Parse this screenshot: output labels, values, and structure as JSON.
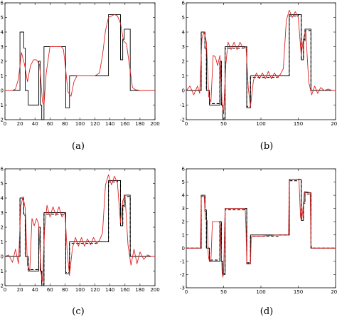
{
  "chart_data": [
    {
      "type": "line",
      "caption": "(a)",
      "xlim": [
        0,
        200
      ],
      "ylim": [
        -2,
        6
      ],
      "xticks": [
        0,
        20,
        40,
        60,
        80,
        100,
        120,
        140,
        160,
        180,
        200
      ],
      "yticks": [
        -2,
        -1,
        0,
        1,
        2,
        3,
        4,
        5,
        6
      ],
      "series": [
        {
          "color": "#000000",
          "style": "solid",
          "x": [
            0,
            20,
            20,
            25,
            25,
            27,
            27,
            31,
            31,
            45,
            45,
            47,
            47,
            49,
            49,
            52,
            52,
            78,
            78,
            81,
            81,
            86,
            86,
            123,
            123,
            138,
            138,
            150,
            150,
            154,
            154,
            157,
            157,
            159,
            159,
            167,
            167,
            175,
            175,
            188,
            188,
            200
          ],
          "y": [
            0,
            0,
            4,
            4,
            2.9,
            2.9,
            0,
            0,
            -1,
            -1,
            2,
            2,
            -1,
            -1,
            -2,
            -2,
            3,
            3,
            3,
            3,
            -1.2,
            -1.2,
            1,
            1,
            1,
            1,
            5.2,
            5.2,
            5.2,
            5.2,
            2.1,
            2.1,
            3.5,
            3.5,
            4.2,
            4.2,
            0,
            0,
            0,
            0,
            0,
            0
          ]
        },
        {
          "color": "#e02020",
          "style": "solid",
          "x": [
            0,
            10,
            14,
            18,
            22,
            26,
            30,
            34,
            38,
            42,
            46,
            48,
            50,
            52,
            55,
            60,
            65,
            70,
            75,
            78,
            81,
            84,
            88,
            92,
            96,
            100,
            110,
            120,
            126,
            130,
            134,
            138,
            142,
            146,
            150,
            154,
            158,
            162,
            166,
            170,
            174,
            180,
            190,
            200
          ],
          "y": [
            0,
            0,
            0.1,
            0.8,
            2.6,
            1.8,
            0.6,
            1.7,
            2.1,
            2.1,
            1.8,
            0.6,
            -0.8,
            -1.0,
            1.2,
            3.0,
            3.0,
            3.0,
            3.0,
            2.8,
            1.4,
            -0.1,
            -0.4,
            0.6,
            1.0,
            1.0,
            1.0,
            1.0,
            1.2,
            2.4,
            4.1,
            5.0,
            5.1,
            5.2,
            5.1,
            4.6,
            3.4,
            3.2,
            1.7,
            0.2,
            0.05,
            0,
            0,
            0
          ]
        }
      ]
    },
    {
      "type": "line",
      "caption": "(b)",
      "xlim": [
        0,
        200
      ],
      "ylim": [
        -2,
        6
      ],
      "xticks": [
        0,
        50,
        100,
        150,
        200
      ],
      "yticks": [
        -2,
        -1,
        0,
        1,
        2,
        3,
        4,
        5,
        6
      ],
      "series": [
        {
          "color": "#000000",
          "style": "solid",
          "x": [
            0,
            20,
            20,
            25,
            25,
            27,
            27,
            31,
            31,
            45,
            45,
            47,
            47,
            49,
            49,
            52,
            52,
            78,
            78,
            81,
            81,
            86,
            86,
            123,
            123,
            138,
            138,
            150,
            150,
            154,
            154,
            157,
            157,
            159,
            159,
            167,
            167,
            175,
            175,
            188,
            188,
            200
          ],
          "y": [
            0,
            0,
            4,
            4,
            2.9,
            2.9,
            0,
            0,
            -1,
            -1,
            2,
            2,
            -1,
            -1,
            -2,
            -2,
            3,
            3,
            3,
            3,
            -1.2,
            -1.2,
            1,
            1,
            1,
            1,
            5.2,
            5.2,
            5.2,
            5.2,
            2.1,
            2.1,
            3.5,
            3.5,
            4.2,
            4.2,
            0,
            0,
            0,
            0,
            0,
            0
          ]
        },
        {
          "color": "#000000",
          "style": "dashed",
          "x": [
            0,
            20,
            20,
            25,
            25,
            27,
            27,
            31,
            31,
            45,
            45,
            47,
            47,
            49,
            49,
            52,
            52,
            78,
            78,
            81,
            81,
            86,
            86,
            123,
            123,
            138,
            138,
            150,
            150,
            154,
            154,
            157,
            157,
            159,
            159,
            167,
            167,
            175,
            175,
            188,
            188,
            200
          ],
          "y": [
            0,
            0,
            3.9,
            3.9,
            2.8,
            2.8,
            0,
            0,
            -0.9,
            -0.9,
            2,
            2,
            -1,
            -1,
            -1.9,
            -1.9,
            2.9,
            2.9,
            3,
            3,
            -1.1,
            -1.1,
            0.9,
            0.9,
            1,
            1,
            5.1,
            5.1,
            5.2,
            5.2,
            2.2,
            2.2,
            3.4,
            3.4,
            4.1,
            4.1,
            0,
            0,
            0,
            0,
            0,
            0
          ]
        },
        {
          "color": "#e02020",
          "style": "solid",
          "x": [
            0,
            5,
            10,
            15,
            18,
            21,
            24,
            27,
            30,
            33,
            36,
            39,
            42,
            45,
            48,
            50,
            53,
            56,
            60,
            64,
            68,
            72,
            76,
            80,
            83,
            86,
            90,
            94,
            98,
            102,
            106,
            110,
            114,
            118,
            122,
            126,
            130,
            134,
            138,
            142,
            146,
            150,
            154,
            157,
            160,
            164,
            168,
            172,
            176,
            180,
            185,
            190,
            195,
            200
          ],
          "y": [
            0,
            0.3,
            -0.3,
            0.3,
            -0.2,
            3.6,
            4.0,
            3.3,
            -0.4,
            -0.8,
            2.4,
            2.3,
            1.7,
            2.4,
            -0.9,
            -1.6,
            1.8,
            3.3,
            2.8,
            3.3,
            2.8,
            3.3,
            2.9,
            3.0,
            0.2,
            -1.1,
            0.7,
            1.2,
            0.8,
            1.2,
            0.8,
            1.3,
            0.8,
            1.2,
            0.9,
            1.1,
            1.5,
            4.8,
            5.5,
            5.0,
            5.4,
            5.0,
            2.4,
            3.6,
            4.1,
            0.6,
            -0.3,
            0.3,
            -0.2,
            0.2,
            0,
            0.1,
            0,
            0
          ]
        }
      ]
    },
    {
      "type": "line",
      "caption": "(c)",
      "xlim": [
        0,
        200
      ],
      "ylim": [
        -2,
        6
      ],
      "xticks": [
        0,
        20,
        40,
        60,
        80,
        100,
        120,
        140,
        160,
        180,
        200
      ],
      "yticks": [
        -2,
        -1,
        0,
        1,
        2,
        3,
        4,
        5,
        6
      ],
      "series": [
        {
          "color": "#000000",
          "style": "solid",
          "x": [
            0,
            20,
            20,
            25,
            25,
            27,
            27,
            31,
            31,
            45,
            45,
            47,
            47,
            49,
            49,
            52,
            52,
            78,
            78,
            81,
            81,
            86,
            86,
            123,
            123,
            138,
            138,
            150,
            150,
            154,
            154,
            157,
            157,
            159,
            159,
            167,
            167,
            175,
            175,
            188,
            188,
            200
          ],
          "y": [
            0,
            0,
            4,
            4,
            2.9,
            2.9,
            0,
            0,
            -1,
            -1,
            2,
            2,
            -1,
            -1,
            -2,
            -2,
            3,
            3,
            3,
            3,
            -1.2,
            -1.2,
            1,
            1,
            1,
            1,
            5.2,
            5.2,
            5.2,
            5.2,
            2.1,
            2.1,
            3.5,
            3.5,
            4.2,
            4.2,
            0,
            0,
            0,
            0,
            0,
            0
          ]
        },
        {
          "color": "#000000",
          "style": "dashed",
          "x": [
            0,
            20,
            20,
            25,
            25,
            27,
            27,
            31,
            31,
            45,
            45,
            47,
            47,
            49,
            49,
            52,
            52,
            78,
            78,
            81,
            81,
            86,
            86,
            123,
            123,
            138,
            138,
            150,
            150,
            154,
            154,
            157,
            157,
            159,
            159,
            167,
            167,
            175,
            175,
            188,
            188,
            200
          ],
          "y": [
            0,
            0,
            3.9,
            3.9,
            2.8,
            2.8,
            0,
            0,
            -0.9,
            -0.9,
            2,
            2,
            -1,
            -1,
            -1.9,
            -1.9,
            2.9,
            2.9,
            3,
            3,
            -1.1,
            -1.1,
            0.9,
            0.9,
            1,
            1,
            5.1,
            5.1,
            5.2,
            5.2,
            2.2,
            2.2,
            3.4,
            3.4,
            4.1,
            4.1,
            0,
            0,
            0,
            0,
            0,
            0
          ]
        },
        {
          "color": "#e02020",
          "style": "solid",
          "x": [
            0,
            5,
            10,
            14,
            18,
            21,
            24,
            27,
            30,
            33,
            36,
            39,
            42,
            45,
            48,
            50,
            53,
            56,
            60,
            64,
            68,
            72,
            76,
            80,
            83,
            86,
            90,
            94,
            98,
            102,
            106,
            110,
            114,
            118,
            122,
            126,
            130,
            134,
            138,
            142,
            146,
            150,
            154,
            157,
            160,
            164,
            168,
            172,
            176,
            180,
            185,
            190,
            195,
            200
          ],
          "y": [
            0,
            0.1,
            -0.4,
            0.5,
            -0.5,
            3.4,
            4.1,
            3.3,
            -0.6,
            -1.0,
            2.6,
            2.1,
            2.6,
            2.2,
            -1.1,
            -1.7,
            2.0,
            3.5,
            2.7,
            3.4,
            2.8,
            3.4,
            2.7,
            3.0,
            0.3,
            -1.3,
            0.6,
            1.3,
            0.7,
            1.3,
            0.7,
            1.2,
            0.8,
            1.3,
            0.9,
            1.1,
            1.6,
            4.9,
            5.6,
            4.9,
            5.5,
            5.0,
            2.3,
            3.8,
            4.2,
            0.8,
            -0.6,
            0.5,
            -0.5,
            0.3,
            -0.2,
            0.1,
            0,
            0
          ]
        }
      ]
    },
    {
      "type": "line",
      "caption": "(d)",
      "xlim": [
        0,
        200
      ],
      "ylim": [
        -3,
        6
      ],
      "xticks": [
        0,
        50,
        100,
        150,
        200
      ],
      "yticks": [
        -3,
        -2,
        -1,
        0,
        1,
        2,
        3,
        4,
        5,
        6
      ],
      "series": [
        {
          "color": "#000000",
          "style": "solid",
          "x": [
            0,
            20,
            20,
            25,
            25,
            27,
            27,
            31,
            31,
            45,
            45,
            47,
            47,
            49,
            49,
            52,
            52,
            78,
            78,
            81,
            81,
            86,
            86,
            123,
            123,
            138,
            138,
            150,
            150,
            154,
            154,
            157,
            157,
            159,
            159,
            167,
            167,
            175,
            175,
            188,
            188,
            200
          ],
          "y": [
            0,
            0,
            4,
            4,
            2.9,
            2.9,
            0,
            0,
            -1,
            -1,
            2,
            2,
            -1,
            -1,
            -2,
            -2,
            3,
            3,
            3,
            3,
            -1.2,
            -1.2,
            1,
            1,
            1,
            1,
            5.2,
            5.2,
            5.2,
            5.2,
            2.1,
            2.1,
            3.5,
            3.5,
            4.2,
            4.2,
            0,
            0,
            0,
            0,
            0,
            0
          ]
        },
        {
          "color": "#000000",
          "style": "dashed",
          "x": [
            0,
            20,
            20,
            25,
            25,
            27,
            27,
            31,
            31,
            45,
            45,
            47,
            47,
            49,
            49,
            52,
            52,
            78,
            78,
            81,
            81,
            86,
            86,
            123,
            123,
            138,
            138,
            150,
            150,
            154,
            154,
            157,
            157,
            159,
            159,
            167,
            167,
            175,
            175,
            188,
            188,
            200
          ],
          "y": [
            0,
            0,
            3.9,
            3.9,
            2.8,
            2.8,
            0,
            0,
            -0.9,
            -0.9,
            2,
            2,
            -1,
            -1,
            -1.9,
            -1.9,
            2.9,
            2.9,
            3,
            3,
            -1.1,
            -1.1,
            0.9,
            0.9,
            1,
            1,
            5.1,
            5.1,
            5.2,
            5.2,
            2.2,
            2.2,
            3.4,
            3.4,
            4.1,
            4.1,
            0,
            0,
            0,
            0,
            0,
            0
          ]
        },
        {
          "color": "#e02020",
          "style": "solid",
          "x": [
            0,
            19,
            20,
            20.5,
            24,
            25,
            25.5,
            28,
            29,
            29.5,
            30.5,
            33,
            35,
            44,
            45.5,
            47,
            47.5,
            48,
            49,
            50,
            52,
            53,
            78,
            79,
            80,
            81,
            86,
            87,
            88,
            100,
            122,
            123,
            124,
            137,
            138,
            139,
            150,
            151,
            153,
            154,
            155,
            157,
            158,
            159,
            166,
            167,
            168,
            175,
            200
          ],
          "y": [
            0,
            0,
            3.8,
            4.0,
            3.9,
            2.9,
            2.2,
            2.1,
            0.2,
            -0.5,
            -0.9,
            -1.0,
            2.0,
            2.0,
            1.8,
            -0.8,
            -1.0,
            -1.8,
            -2.2,
            -1.9,
            2.9,
            3.0,
            3.0,
            2.9,
            1.5,
            -1.1,
            -1.2,
            0.8,
            0.9,
            0.9,
            1.0,
            1.0,
            1.0,
            1.0,
            5.1,
            5.2,
            5.2,
            5.1,
            2.4,
            2.1,
            2.3,
            3.4,
            4.2,
            4.3,
            4.2,
            0.3,
            0,
            0,
            0
          ]
        }
      ]
    }
  ]
}
